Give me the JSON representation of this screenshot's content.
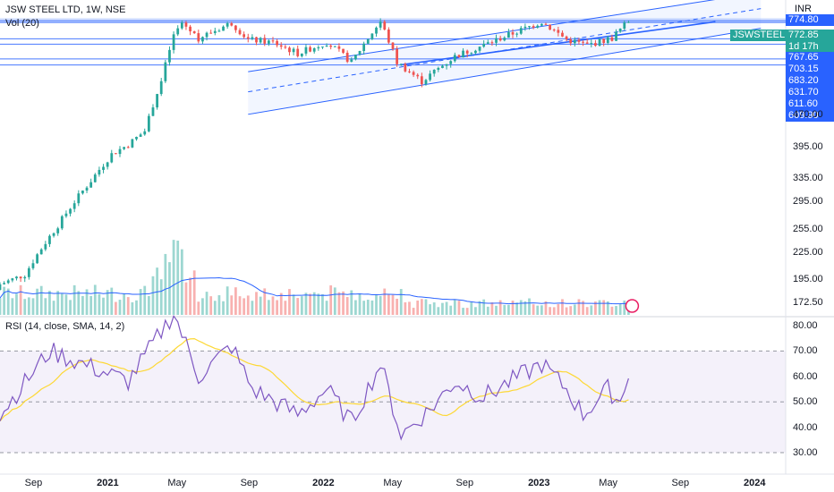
{
  "header": {
    "title": "JSW STEEL LTD, 1W, NSE",
    "volume_label": "Vol (20)",
    "rsi_label": "RSI (14, close, SMA, 14, 2)",
    "currency": "INR"
  },
  "colors": {
    "up": "#26a69a",
    "down": "#ef5350",
    "channel": "#2962ff",
    "rsi_line": "#7e57c2",
    "rsi_sma": "#fdd835",
    "rsi_band": "#ede7f6",
    "grid": "#f0f3fa"
  },
  "price_tags": [
    {
      "label": "774.80",
      "color": "#2962ff"
    },
    {
      "label": "772.85",
      "color": "#26a69a"
    },
    {
      "label": "1d 17h",
      "color": "#26a69a"
    },
    {
      "label": "767.65",
      "color": "#2962ff"
    },
    {
      "label": "703.15",
      "color": "#2962ff"
    },
    {
      "label": "683.20",
      "color": "#2962ff"
    },
    {
      "label": "631.70",
      "color": "#2962ff"
    },
    {
      "label": "611.60",
      "color": "#2962ff"
    },
    {
      "label": "609.90",
      "color": "#2962ff"
    }
  ],
  "symbol_tag": "JSWSTEEL",
  "chart_data": {
    "type": "candlestick",
    "title": "JSW STEEL LTD, 1W, NSE",
    "price_axis_ticks": [
      "470.00",
      "395.00",
      "335.00",
      "295.00",
      "255.00",
      "225.00",
      "195.00",
      "172.50"
    ],
    "rsi_axis_ticks": [
      "80.00",
      "70.00",
      "60.00",
      "50.00",
      "40.00",
      "30.00"
    ],
    "time_ticks": [
      "Sep",
      "2021",
      "May",
      "Sep",
      "2022",
      "May",
      "Sep",
      "2023",
      "May",
      "Sep",
      "2024"
    ],
    "rsi_levels": [
      70,
      50,
      30
    ],
    "anchor_points": [
      {
        "date": "2020-07-06",
        "close": 190
      },
      {
        "date": "2020-08-17",
        "close": 200
      },
      {
        "date": "2020-10-12",
        "close": 260
      },
      {
        "date": "2020-12-07",
        "close": 330
      },
      {
        "date": "2021-01-11",
        "close": 380
      },
      {
        "date": "2021-02-08",
        "close": 400
      },
      {
        "date": "2021-03-08",
        "close": 430
      },
      {
        "date": "2021-04-05",
        "close": 560
      },
      {
        "date": "2021-04-26",
        "close": 715
      },
      {
        "date": "2021-05-10",
        "close": 765
      },
      {
        "date": "2021-06-07",
        "close": 705
      },
      {
        "date": "2021-08-02",
        "close": 765
      },
      {
        "date": "2021-08-30",
        "close": 700
      },
      {
        "date": "2021-10-11",
        "close": 690
      },
      {
        "date": "2021-11-22",
        "close": 650
      },
      {
        "date": "2022-01-10",
        "close": 690
      },
      {
        "date": "2022-02-21",
        "close": 620
      },
      {
        "date": "2022-04-11",
        "close": 770
      },
      {
        "date": "2022-05-09",
        "close": 620
      },
      {
        "date": "2022-06-20",
        "close": 560
      },
      {
        "date": "2022-08-15",
        "close": 640
      },
      {
        "date": "2022-10-03",
        "close": 680
      },
      {
        "date": "2022-11-28",
        "close": 730
      },
      {
        "date": "2023-01-09",
        "close": 770
      },
      {
        "date": "2023-02-20",
        "close": 700
      },
      {
        "date": "2023-03-27",
        "close": 680
      },
      {
        "date": "2023-05-08",
        "close": 705
      },
      {
        "date": "2023-06-05",
        "close": 773
      }
    ],
    "rsi_anchor_points": [
      {
        "date": "2020-07-06",
        "rsi": 45
      },
      {
        "date": "2020-09-28",
        "rsi": 70
      },
      {
        "date": "2020-11-23",
        "rsi": 65
      },
      {
        "date": "2021-02-08",
        "rsi": 58
      },
      {
        "date": "2021-04-26",
        "rsi": 85
      },
      {
        "date": "2021-06-07",
        "rsi": 60
      },
      {
        "date": "2021-08-02",
        "rsi": 72
      },
      {
        "date": "2021-09-06",
        "rsi": 55
      },
      {
        "date": "2021-11-22",
        "rsi": 45
      },
      {
        "date": "2022-01-10",
        "rsi": 55
      },
      {
        "date": "2022-02-21",
        "rsi": 42
      },
      {
        "date": "2022-04-11",
        "rsi": 65
      },
      {
        "date": "2022-05-16",
        "rsi": 37
      },
      {
        "date": "2022-07-04",
        "rsi": 47
      },
      {
        "date": "2022-08-15",
        "rsi": 58
      },
      {
        "date": "2022-10-03",
        "rsi": 52
      },
      {
        "date": "2023-01-09",
        "rsi": 65
      },
      {
        "date": "2023-02-20",
        "rsi": 55
      },
      {
        "date": "2023-03-20",
        "rsi": 45
      },
      {
        "date": "2023-05-01",
        "rsi": 55
      },
      {
        "date": "2023-05-22",
        "rsi": 50
      },
      {
        "date": "2023-06-05",
        "rsi": 62
      }
    ]
  }
}
